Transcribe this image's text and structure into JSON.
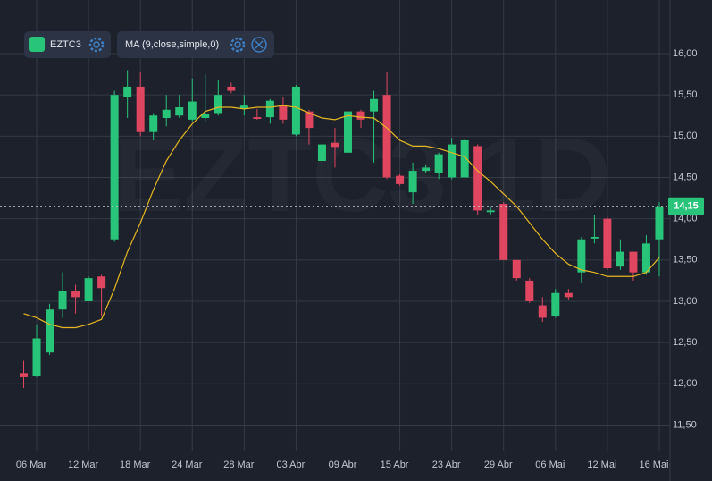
{
  "chart_data": {
    "type": "candlestick",
    "watermark": "EZTC3 1D",
    "categories": [
      null,
      "06 Mar",
      null,
      null,
      null,
      "12 Mar",
      null,
      null,
      null,
      "18 Mar",
      null,
      null,
      null,
      "24 Mar",
      null,
      null,
      null,
      "28 Mar",
      null,
      null,
      null,
      "03 Abr",
      null,
      null,
      null,
      "09 Abr",
      null,
      null,
      null,
      "15 Abr",
      null,
      null,
      null,
      "23 Abr",
      null,
      null,
      null,
      "29 Abr",
      null,
      null,
      null,
      "06 Mai",
      null,
      null,
      null,
      "12 Mai",
      null,
      null,
      null,
      "16 Mai"
    ],
    "series": [
      {
        "name": "EZTC3",
        "color": "#27c47a",
        "down_color": "#e04660",
        "open": [
          12.13,
          12.1,
          12.38,
          12.9,
          13.12,
          13.0,
          13.3,
          13.75,
          15.48,
          15.6,
          15.05,
          15.22,
          15.25,
          15.2,
          15.22,
          15.28,
          15.6,
          15.33,
          15.23,
          15.23,
          15.38,
          15.02,
          15.3,
          14.7,
          14.92,
          14.8,
          15.3,
          15.3,
          15.5,
          14.52,
          14.32,
          14.58,
          14.55,
          14.5,
          14.5,
          14.88,
          14.08,
          14.18,
          13.5,
          13.25,
          12.95,
          12.82,
          13.1,
          13.35,
          13.76,
          14.0,
          13.42,
          13.6,
          13.35,
          13.75
        ],
        "high": [
          12.28,
          12.72,
          12.97,
          13.35,
          13.2,
          13.3,
          13.32,
          15.55,
          15.8,
          15.78,
          15.28,
          15.5,
          15.5,
          15.7,
          15.75,
          15.68,
          15.65,
          15.5,
          15.33,
          15.45,
          15.48,
          15.62,
          15.32,
          14.9,
          15.1,
          15.32,
          15.32,
          15.55,
          15.78,
          14.54,
          14.68,
          14.65,
          14.8,
          14.98,
          14.97,
          14.9,
          14.15,
          14.2,
          13.5,
          13.28,
          13.05,
          13.15,
          13.15,
          13.78,
          14.05,
          14.02,
          13.75,
          13.6,
          13.8,
          14.2
        ],
        "low": [
          11.95,
          12.08,
          12.35,
          12.8,
          12.85,
          13.0,
          12.82,
          13.72,
          15.22,
          15.0,
          14.95,
          15.12,
          15.22,
          15.18,
          15.18,
          15.25,
          15.52,
          15.25,
          15.2,
          15.15,
          15.15,
          15.0,
          14.9,
          14.4,
          14.62,
          14.75,
          15.1,
          14.68,
          14.48,
          14.4,
          14.18,
          14.55,
          14.48,
          14.48,
          14.5,
          14.05,
          14.05,
          13.5,
          13.25,
          12.98,
          12.75,
          12.8,
          13.02,
          13.22,
          13.7,
          13.38,
          13.38,
          13.25,
          13.32,
          13.3
        ],
        "close": [
          12.08,
          12.55,
          12.9,
          13.12,
          13.05,
          13.28,
          13.16,
          15.5,
          15.6,
          15.05,
          15.25,
          15.32,
          15.35,
          15.42,
          15.27,
          15.5,
          15.55,
          15.37,
          15.21,
          15.43,
          15.2,
          15.6,
          15.1,
          14.9,
          14.87,
          15.3,
          15.2,
          15.45,
          14.5,
          14.42,
          14.58,
          14.62,
          14.78,
          14.9,
          14.95,
          14.1,
          14.1,
          13.5,
          13.28,
          13.0,
          12.8,
          13.1,
          13.05,
          13.75,
          13.78,
          13.4,
          13.6,
          13.35,
          13.7,
          14.15
        ]
      },
      {
        "name": "MA (9,close,simple,0)",
        "color": "#e6b722",
        "values": [
          12.85,
          12.8,
          12.72,
          12.68,
          12.68,
          12.72,
          12.78,
          13.15,
          13.6,
          13.95,
          14.35,
          14.7,
          14.95,
          15.15,
          15.3,
          15.35,
          15.35,
          15.33,
          15.35,
          15.35,
          15.37,
          15.35,
          15.28,
          15.22,
          15.2,
          15.25,
          15.23,
          15.22,
          15.1,
          14.95,
          14.88,
          14.88,
          14.85,
          14.8,
          14.75,
          14.58,
          14.45,
          14.3,
          14.15,
          13.95,
          13.75,
          13.58,
          13.45,
          13.38,
          13.35,
          13.3,
          13.3,
          13.3,
          13.35,
          13.53
        ]
      }
    ],
    "last_value": 14.15,
    "last_label": "14,15",
    "ylim": [
      11.18,
      16.65
    ],
    "yticks": [
      {
        "value": 11.5,
        "label": "11,50"
      },
      {
        "value": 12,
        "label": "12,00"
      },
      {
        "value": 12.5,
        "label": "12,50"
      },
      {
        "value": 13,
        "label": "13,00"
      },
      {
        "value": 13.5,
        "label": "13,50"
      },
      {
        "value": 14,
        "label": "14,00"
      },
      {
        "value": 14.5,
        "label": "14,50"
      },
      {
        "value": 15,
        "label": "15,00"
      },
      {
        "value": 15.5,
        "label": "15,50"
      },
      {
        "value": 16,
        "label": "16,00"
      }
    ],
    "grid": true
  }
}
